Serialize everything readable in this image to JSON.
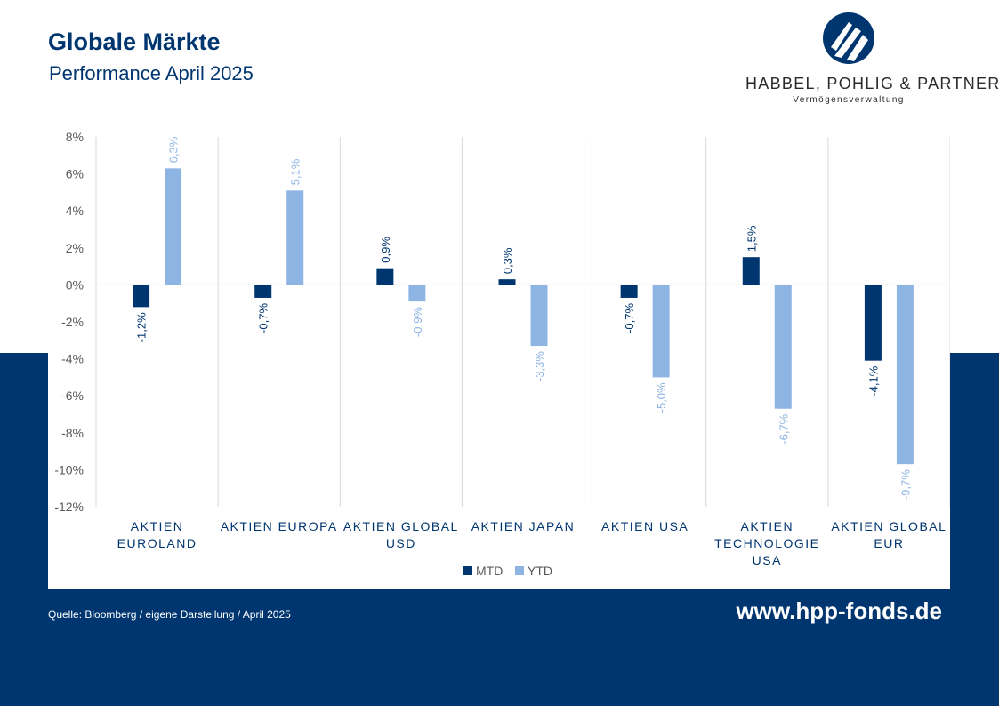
{
  "header": {
    "title": "Globale Märkte",
    "subtitle": "Performance April 2025"
  },
  "logo": {
    "name": "HABBEL, POHLIG & PARTNER",
    "tagline": "Vermögensverwaltung"
  },
  "footer": {
    "source": "Quelle: Bloomberg / eigene Darstellung / April 2025",
    "website": "www.hpp-fonds.de"
  },
  "colors": {
    "navy": "#003670",
    "mtd": "#003670",
    "ytd": "#8EB4E3"
  },
  "chart_data": {
    "type": "bar",
    "title": "",
    "xlabel": "",
    "ylabel": "",
    "ylim": [
      -12,
      8
    ],
    "yticks": [
      8,
      6,
      4,
      2,
      0,
      -2,
      -4,
      -6,
      -8,
      -10,
      -12
    ],
    "ytick_labels": [
      "8%",
      "6%",
      "4%",
      "2%",
      "0%",
      "-2%",
      "-4%",
      "-6%",
      "-8%",
      "-10%",
      "-12%"
    ],
    "categories": [
      [
        "AKTIEN",
        "EUROLAND"
      ],
      [
        "AKTIEN EUROPA"
      ],
      [
        "AKTIEN GLOBAL",
        "USD"
      ],
      [
        "AKTIEN JAPAN"
      ],
      [
        "AKTIEN USA"
      ],
      [
        "AKTIEN",
        "TECHNOLOGIE",
        "USA"
      ],
      [
        "AKTIEN GLOBAL",
        "EUR"
      ]
    ],
    "series": [
      {
        "name": "MTD",
        "color": "#003670",
        "values": [
          -1.2,
          -0.7,
          0.9,
          0.3,
          -0.7,
          1.5,
          -4.1
        ],
        "labels": [
          "-1,2%",
          "-0,7%",
          "0,9%",
          "0,3%",
          "-0,7%",
          "1,5%",
          "-4,1%"
        ]
      },
      {
        "name": "YTD",
        "color": "#8EB4E3",
        "values": [
          6.3,
          5.1,
          -0.9,
          -3.3,
          -5.0,
          -6.7,
          -9.7
        ],
        "labels": [
          "6,3%",
          "5,1%",
          "-0,9%",
          "-3,3%",
          "-5,0%",
          "-6,7%",
          "-9,7%"
        ]
      }
    ],
    "grid": "vertical category separators",
    "legend": "bottom-center"
  }
}
